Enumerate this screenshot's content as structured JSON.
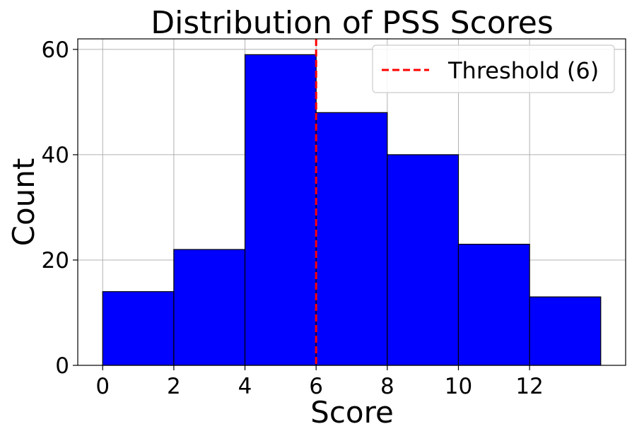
{
  "chart_data": {
    "type": "bar",
    "title": "Distribution of PSS Scores",
    "xlabel": "Score",
    "ylabel": "Count",
    "bins": [
      {
        "start": 0,
        "end": 2,
        "count": 14
      },
      {
        "start": 2,
        "end": 4,
        "count": 22
      },
      {
        "start": 4,
        "end": 6,
        "count": 59
      },
      {
        "start": 6,
        "end": 8,
        "count": 48
      },
      {
        "start": 8,
        "end": 10,
        "count": 40
      },
      {
        "start": 10,
        "end": 12,
        "count": 23
      },
      {
        "start": 12,
        "end": 14,
        "count": 13
      }
    ],
    "xticks": [
      "0",
      "2",
      "4",
      "6",
      "8",
      "10",
      "12"
    ],
    "yticks": [
      "0",
      "20",
      "40",
      "60"
    ],
    "xlim": [
      -0.7,
      14.7
    ],
    "ylim": [
      0,
      62
    ],
    "grid": true,
    "bar_color": "#0000ff",
    "edge_color": "#000000",
    "threshold": {
      "value": 6,
      "label": "Threshold (6)",
      "color": "#ff0000",
      "style": "dashed"
    },
    "legend_position": "top-right"
  }
}
